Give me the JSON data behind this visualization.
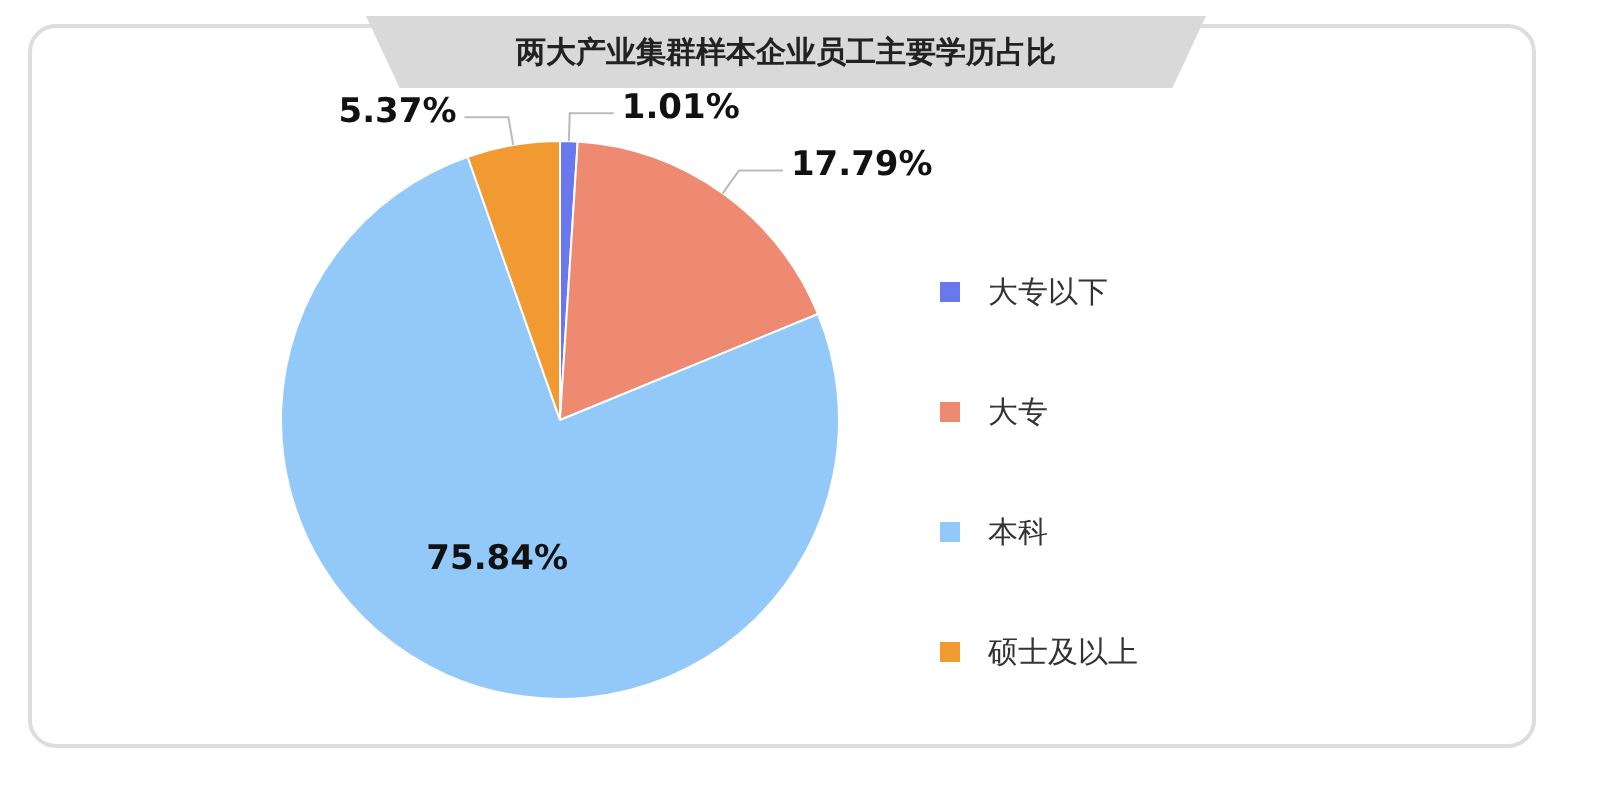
{
  "chart_data": {
    "type": "pie",
    "title": "两大产业集群样本企业员工主要学历占比",
    "categories": [
      "大专以下",
      "大专",
      "本科",
      "硕士及以上"
    ],
    "values": [
      1.01,
      17.79,
      75.84,
      5.37
    ],
    "colors": [
      "#6a78ee",
      "#ef8a72",
      "#92c9f9",
      "#f19a32"
    ],
    "value_labels": [
      "1.01%",
      "17.79%",
      "75.84%",
      "5.37%"
    ],
    "legend": "right"
  }
}
